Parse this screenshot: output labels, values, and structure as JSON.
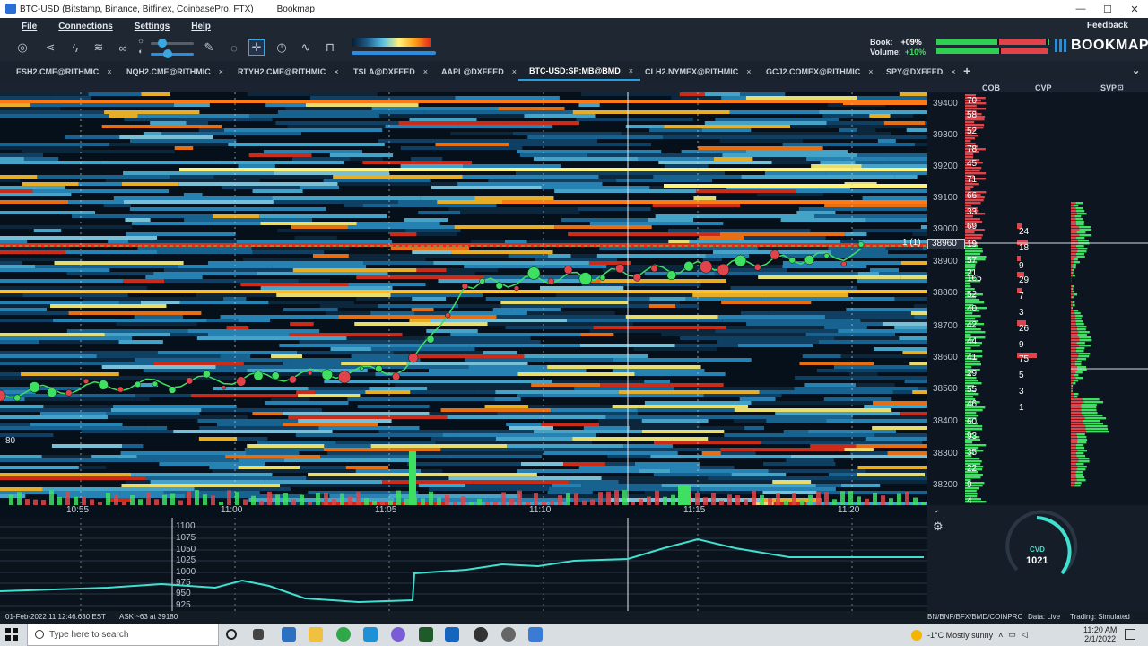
{
  "window": {
    "title": "BTC-USD (Bitstamp, Binance, Bitfinex, CoinbasePro, FTX)",
    "app": "Bookmap",
    "controls": [
      "—",
      "☐",
      "✕"
    ]
  },
  "menu": {
    "file": "File",
    "connections": "Connections",
    "settings": "Settings",
    "help": "Help",
    "feedback": "Feedback"
  },
  "stats": {
    "book_label": "Book:",
    "book_value": "+09%",
    "volume_label": "Volume:",
    "volume_value": "+10%"
  },
  "logo": "BOOKMAP",
  "tabs": [
    {
      "label": "ESH2.CME@RITHMIC",
      "active": false
    },
    {
      "label": "NQH2.CME@RITHMIC",
      "active": false
    },
    {
      "label": "RTYH2.CME@RITHMIC",
      "active": false
    },
    {
      "label": "TSLA@DXFEED",
      "active": false
    },
    {
      "label": "AAPL@DXFEED",
      "active": false
    },
    {
      "label": "BTC-USD:SP:MB@BMD",
      "active": true
    },
    {
      "label": "CLH2.NYMEX@RITHMIC",
      "active": false
    },
    {
      "label": "GCJ2.COMEX@RITHMIC",
      "active": false
    },
    {
      "label": "SPY@DXFEED",
      "active": false
    }
  ],
  "tab_add": "+",
  "tab_close": "×",
  "panels": {
    "cob": "COB",
    "cvp": "CVP",
    "svp": "SVP"
  },
  "price_axis": [
    "39400",
    "39300",
    "39200",
    "39100",
    "39000",
    "38900",
    "38800",
    "38700",
    "38600",
    "38500",
    "38400",
    "38300",
    "38200"
  ],
  "current_price": "38960",
  "order_marker": "1 (1)",
  "heatmap_corner_label": "80",
  "time_axis": [
    "10:55",
    "11:00",
    "11:05",
    "11:10",
    "11:15",
    "11:20"
  ],
  "cob_bid_sizes": [
    "70",
    "58",
    "52",
    "78",
    "45",
    "71",
    "66",
    "33",
    "69"
  ],
  "cob_ask_sizes": [
    "19",
    "57",
    "21",
    "165",
    "52",
    "40",
    "42",
    "44",
    "41",
    "29",
    "55",
    "46",
    "60",
    "93",
    "35",
    "22",
    "9",
    "4"
  ],
  "cvp_sizes": [
    "24",
    "18",
    "9",
    "29",
    "7",
    "3",
    "26",
    "9",
    "75",
    "5",
    "3",
    "1"
  ],
  "cvd": {
    "scale": [
      "1100",
      "1075",
      "1050",
      "1025",
      "1000",
      "975",
      "950",
      "925"
    ],
    "gauge_label": "CVD",
    "gauge_value": "1021"
  },
  "status": {
    "datetime": "01-Feb-2022 11:12:46.630 EST",
    "ask": "ASK ~63 at 39180",
    "sources": "BN/BNF/BFX/BMD/COINPRC",
    "data": "Data: Live",
    "trading": "Trading: Simulated"
  },
  "taskbar": {
    "search_placeholder": "Type here to search",
    "weather": "-1°C  Mostly sunny",
    "time": "11:20 AM",
    "date": "2/1/2022"
  },
  "colors": {
    "bid": "#e0444a",
    "ask": "#3ee061",
    "cvd_line": "#3fe0d0",
    "accent": "#2a9fe0"
  }
}
